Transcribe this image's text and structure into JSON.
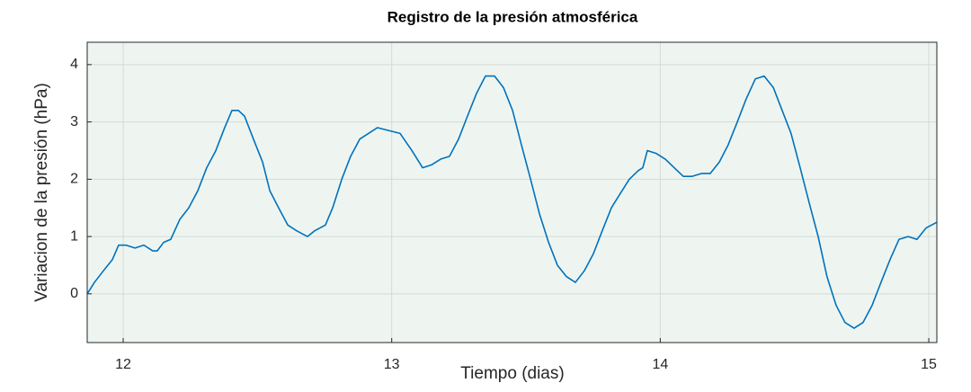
{
  "chart_data": {
    "type": "line",
    "title": "Registro de la presión atmosférica",
    "x_label": "Tiempo (dias)",
    "y_label": "Variacion de la presión (hPa)",
    "xlim": [
      11.866,
      15.03
    ],
    "xticks": [
      12,
      13,
      14,
      15
    ],
    "ylim": [
      -0.85,
      4.39
    ],
    "yticks": [
      0,
      1,
      2,
      3,
      4
    ],
    "grid": true,
    "background": "#eef5f0",
    "series": [
      {
        "color": "#0072bd",
        "x": [
          11.866,
          11.893,
          11.926,
          11.96,
          11.983,
          12.01,
          12.044,
          12.077,
          12.11,
          12.127,
          12.151,
          12.177,
          12.211,
          12.244,
          12.278,
          12.311,
          12.345,
          12.378,
          12.405,
          12.429,
          12.452,
          12.485,
          12.519,
          12.546,
          12.579,
          12.613,
          12.646,
          12.686,
          12.713,
          12.753,
          12.78,
          12.814,
          12.847,
          12.881,
          12.914,
          12.947,
          12.988,
          13.031,
          13.075,
          13.115,
          13.148,
          13.182,
          13.215,
          13.249,
          13.282,
          13.316,
          13.349,
          13.383,
          13.416,
          13.45,
          13.483,
          13.517,
          13.55,
          13.584,
          13.617,
          13.651,
          13.684,
          13.717,
          13.751,
          13.784,
          13.818,
          13.851,
          13.885,
          13.918,
          13.935,
          13.952,
          13.985,
          14.019,
          14.052,
          14.086,
          14.119,
          14.153,
          14.186,
          14.22,
          14.253,
          14.287,
          14.32,
          14.354,
          14.387,
          14.421,
          14.454,
          14.487,
          14.521,
          14.554,
          14.588,
          14.621,
          14.655,
          14.688,
          14.722,
          14.755,
          14.789,
          14.822,
          14.856,
          14.889,
          14.923,
          14.956,
          14.99,
          15.03
        ],
        "values": [
          0.0,
          0.2,
          0.4,
          0.6,
          0.85,
          0.85,
          0.8,
          0.85,
          0.75,
          0.75,
          0.9,
          0.95,
          1.3,
          1.5,
          1.8,
          2.2,
          2.5,
          2.9,
          3.2,
          3.2,
          3.1,
          2.7,
          2.3,
          1.8,
          1.5,
          1.2,
          1.1,
          1.0,
          1.1,
          1.2,
          1.5,
          2.0,
          2.4,
          2.7,
          2.8,
          2.9,
          2.85,
          2.8,
          2.5,
          2.2,
          2.25,
          2.35,
          2.4,
          2.7,
          3.1,
          3.5,
          3.8,
          3.8,
          3.6,
          3.2,
          2.6,
          2.0,
          1.4,
          0.9,
          0.5,
          0.3,
          0.2,
          0.4,
          0.7,
          1.1,
          1.5,
          1.75,
          2.0,
          2.15,
          2.2,
          2.5,
          2.45,
          2.35,
          2.2,
          2.05,
          2.05,
          2.1,
          2.1,
          2.3,
          2.6,
          3.0,
          3.4,
          3.75,
          3.8,
          3.6,
          3.2,
          2.8,
          2.2,
          1.6,
          1.0,
          0.3,
          -0.2,
          -0.5,
          -0.6,
          -0.5,
          -0.2,
          0.2,
          0.6,
          0.95,
          1.0,
          0.95,
          1.15,
          1.25
        ]
      }
    ]
  }
}
